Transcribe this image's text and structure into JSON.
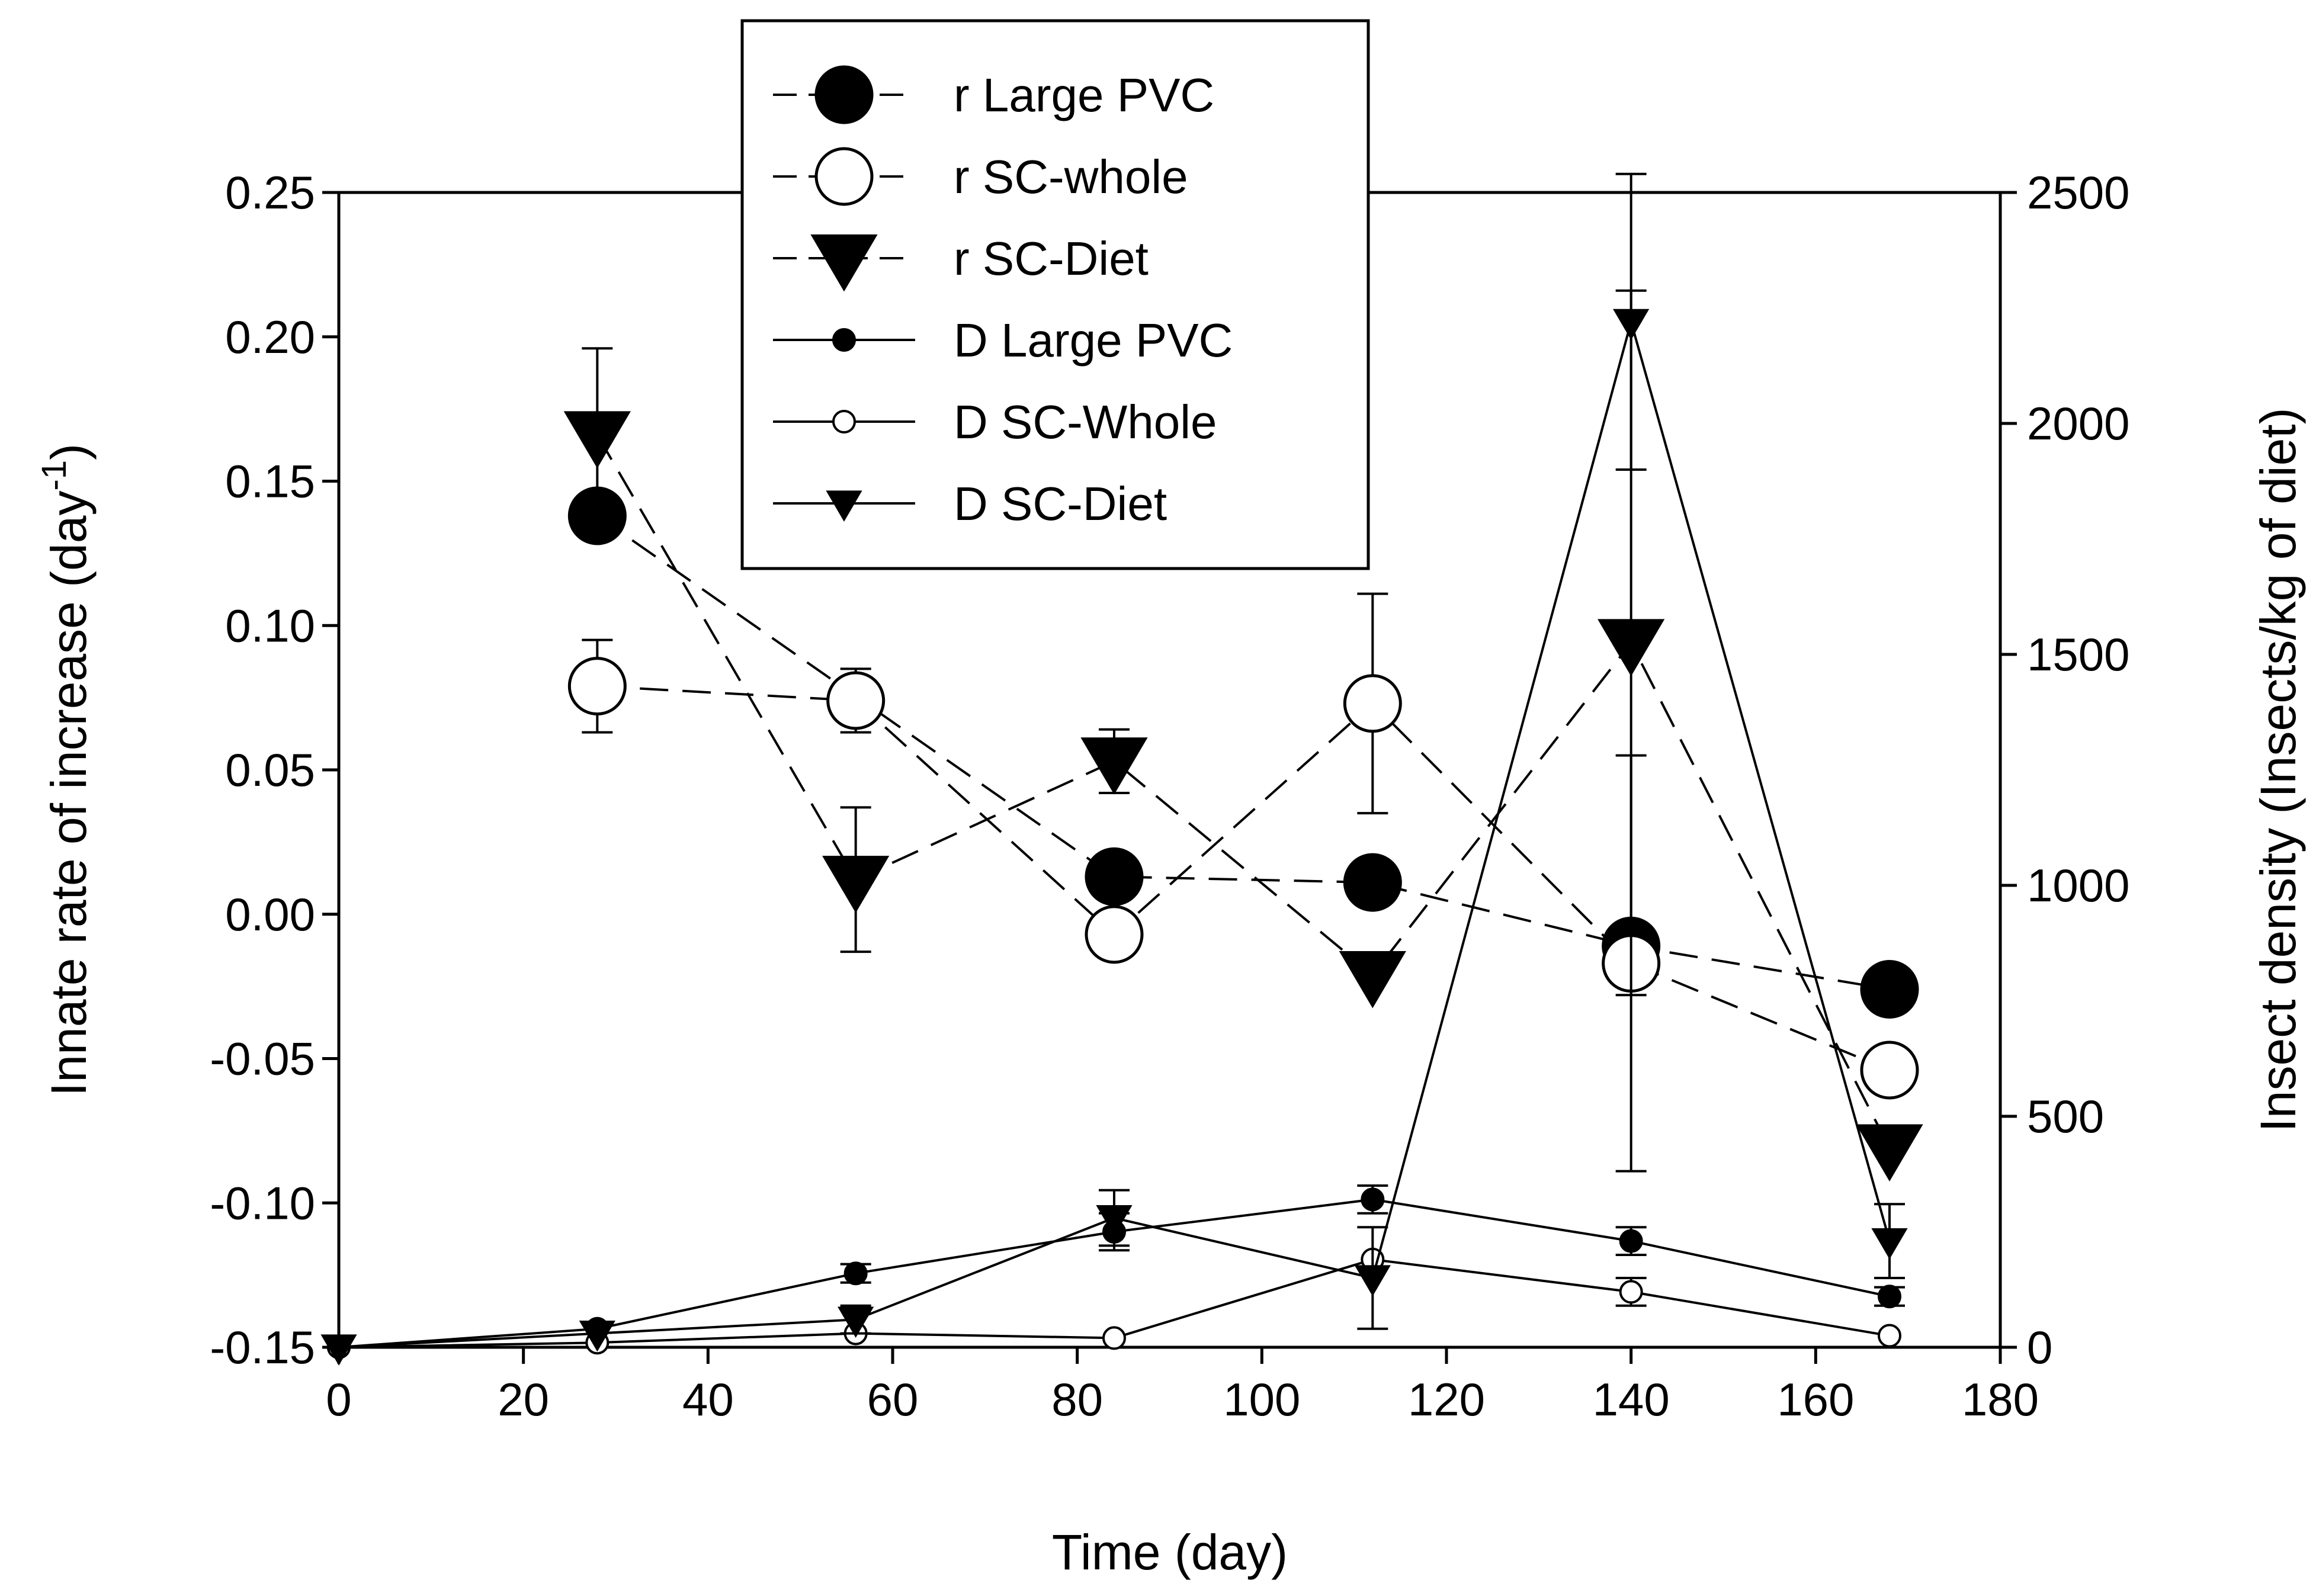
{
  "chart_data": {
    "type": "line",
    "xlabel": "Time (day)",
    "ylabel_left": {
      "main": "Innate rate of increase (day",
      "sup": "-1",
      "end": ")"
    },
    "ylabel_right": "Insect density (Insects/kg of diet)",
    "xlim": [
      0,
      180
    ],
    "ylim_left": [
      -0.15,
      0.25
    ],
    "ylim_right": [
      0,
      2500
    ],
    "x_ticks": [
      "0",
      "20",
      "40",
      "60",
      "80",
      "100",
      "120",
      "140",
      "160",
      "180"
    ],
    "y_left_ticks": [
      "-0.15",
      "-0.10",
      "-0.05",
      "0.00",
      "0.05",
      "0.10",
      "0.15",
      "0.20",
      "0.25"
    ],
    "y_right_ticks": [
      "0",
      "500",
      "1000",
      "1500",
      "2000",
      "2500"
    ],
    "legend_position": "top-center",
    "series": [
      {
        "name": "r Large PVC",
        "axis": "left",
        "marker": "circle-filled",
        "size": "large",
        "line": "dashed",
        "x": [
          28,
          84,
          112,
          140,
          168
        ],
        "y": [
          0.138,
          0.013,
          0.011,
          -0.011,
          -0.026
        ],
        "err": [
          0,
          0,
          0,
          0,
          0
        ]
      },
      {
        "name": "r SC-whole",
        "axis": "left",
        "marker": "circle-open",
        "size": "large",
        "line": "dashed",
        "x": [
          28,
          56,
          84,
          112,
          140,
          168
        ],
        "y": [
          0.079,
          0.074,
          -0.007,
          0.073,
          -0.017,
          -0.054
        ],
        "err": [
          0.016,
          0.011,
          0,
          0.038,
          0.072,
          0
        ]
      },
      {
        "name": "r SC-Diet",
        "axis": "left",
        "marker": "triangle-filled",
        "size": "large",
        "line": "dashed",
        "x": [
          28,
          56,
          84,
          112,
          140,
          168
        ],
        "y": [
          0.166,
          0.012,
          0.053,
          -0.021,
          0.094,
          -0.081
        ],
        "err": [
          0.03,
          0.025,
          0.011,
          0,
          0.122,
          0
        ]
      },
      {
        "name": "D Large PVC",
        "axis": "right",
        "marker": "circle-filled",
        "size": "small",
        "line": "solid",
        "x": [
          0,
          28,
          56,
          84,
          112,
          140,
          168
        ],
        "y": [
          0,
          40,
          160,
          250,
          320,
          230,
          110
        ],
        "err": [
          0,
          0,
          20,
          40,
          30,
          30,
          20
        ]
      },
      {
        "name": "D SC-Whole",
        "axis": "right",
        "marker": "circle-open",
        "size": "small",
        "line": "solid",
        "x": [
          0,
          28,
          56,
          84,
          112,
          140,
          168
        ],
        "y": [
          0,
          10,
          30,
          20,
          190,
          120,
          25
        ],
        "err": [
          0,
          0,
          0,
          0,
          0,
          30,
          0
        ]
      },
      {
        "name": "D SC-Diet",
        "axis": "right",
        "marker": "triangle-filled",
        "size": "small",
        "line": "solid",
        "x": [
          0,
          28,
          56,
          84,
          112,
          140,
          168
        ],
        "y": [
          0,
          30,
          60,
          280,
          150,
          2220,
          230
        ],
        "err": [
          0,
          0,
          30,
          60,
          110,
          320,
          80
        ]
      }
    ]
  }
}
